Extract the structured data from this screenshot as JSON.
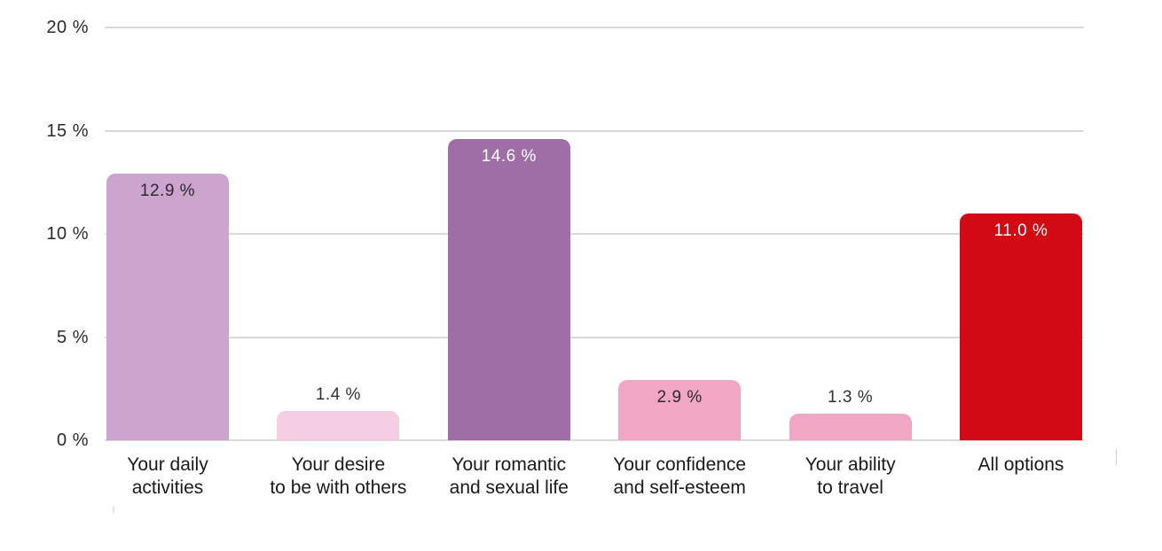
{
  "chart_data": {
    "type": "bar",
    "title": "",
    "xlabel": "",
    "ylabel": "",
    "categories": [
      [
        "Your daily",
        "activities"
      ],
      [
        "Your desire",
        "to be with others"
      ],
      [
        "Your romantic",
        "and sexual life"
      ],
      [
        "Your confidence",
        "and self-esteem"
      ],
      [
        "Your ability",
        "to travel"
      ],
      [
        "All options"
      ]
    ],
    "values": [
      12.9,
      1.4,
      14.6,
      2.9,
      1.3,
      11.0
    ],
    "value_labels": [
      "12.9 %",
      "1.4 %",
      "14.6 %",
      "2.9 %",
      "1.3 %",
      "11.0 %"
    ],
    "value_label_positions": [
      "inside",
      "above",
      "inside",
      "inside",
      "above",
      "inside"
    ],
    "bar_colors": [
      "#cba5cd",
      "#f4cde2",
      "#9f6ea7",
      "#f1a6c3",
      "#f1a6c3",
      "#d10a14"
    ],
    "value_label_colors": [
      "#2e2830",
      "#333036",
      "#ffffff",
      "#2e2830",
      "#333036",
      "#ffffff"
    ],
    "ylim": [
      0,
      20
    ],
    "yticks": [
      0,
      5,
      10,
      15,
      20
    ],
    "ytick_labels": [
      "0 %",
      "5 %",
      "10 %",
      "15 %",
      "20 %"
    ],
    "grid": "horizontal",
    "legend": "none",
    "colors": {
      "background": "#ffffff",
      "gridline": "#d9d9d9",
      "tick_label": "#2b2b2b",
      "category_label": "#1a1a1a"
    }
  }
}
